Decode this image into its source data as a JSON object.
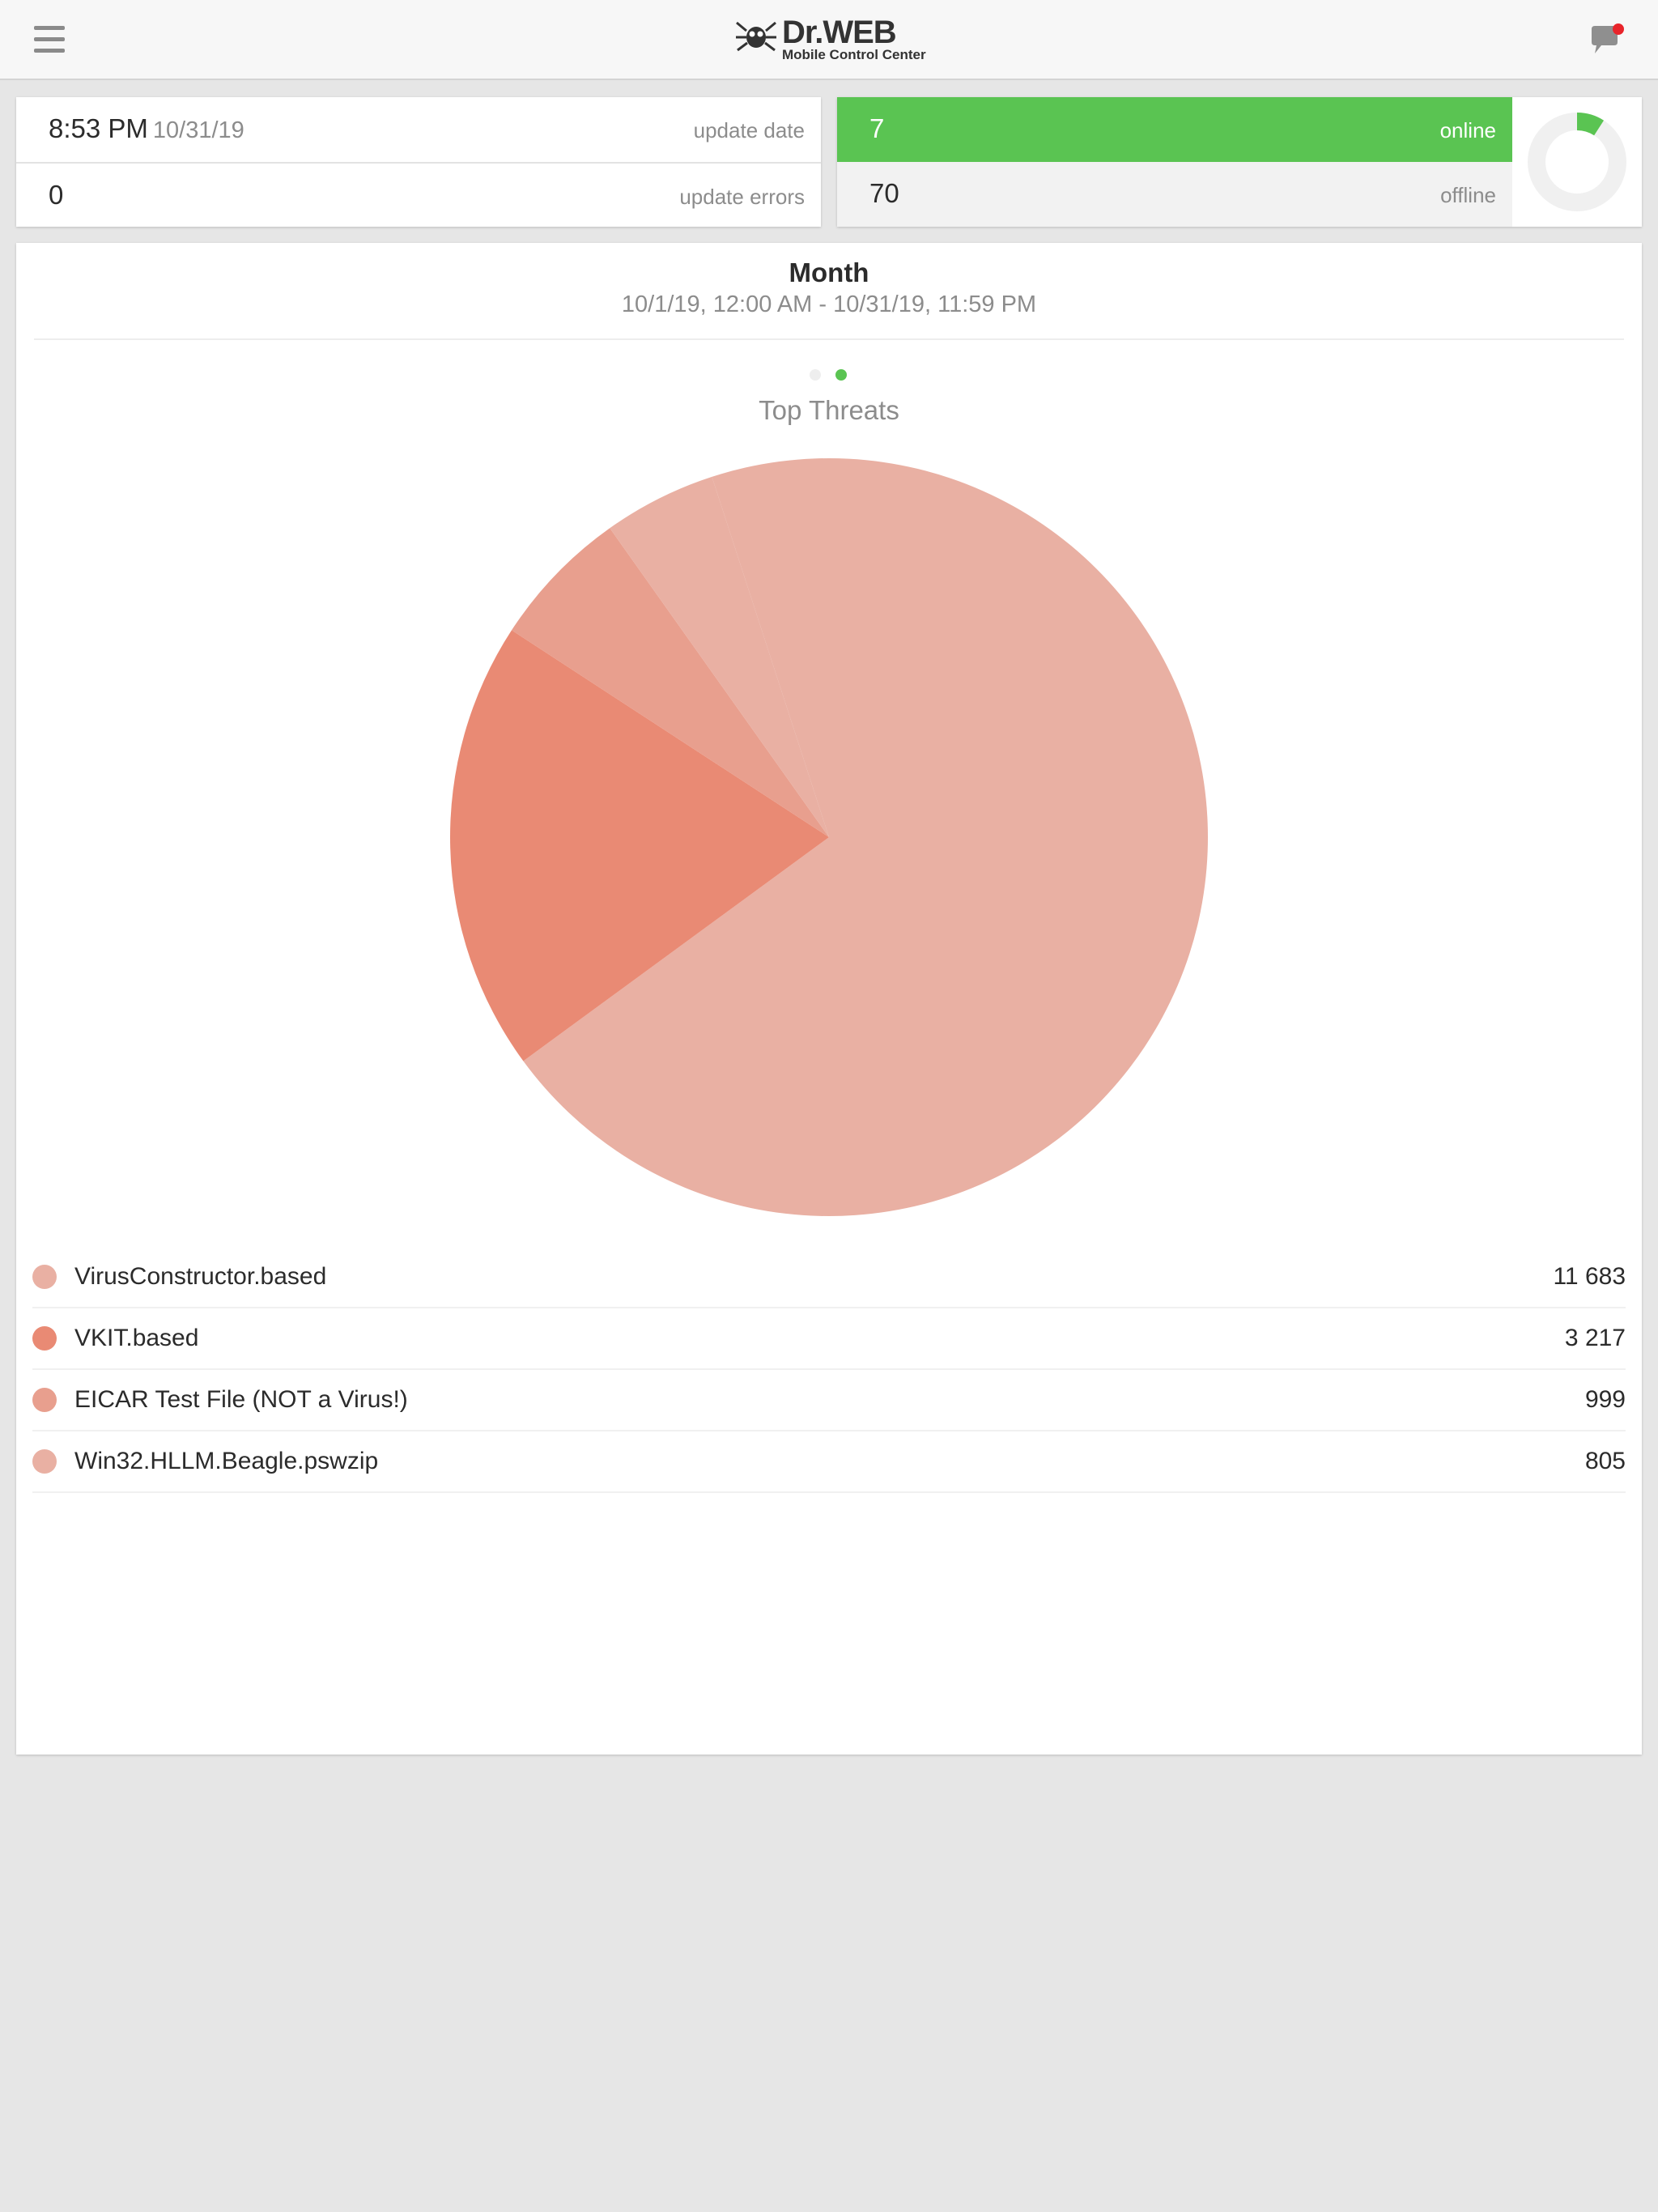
{
  "header": {
    "brand": "Dr.WEB",
    "subtitle": "Mobile Control Center",
    "notification_color": "#e8242a"
  },
  "status": {
    "update_time": "8:53 PM",
    "update_date": "10/31/19",
    "update_date_label": "update date",
    "update_errors": "0",
    "update_errors_label": "update errors",
    "online_count": "7",
    "online_label": "online",
    "offline_count": "70",
    "offline_label": "offline",
    "online_color": "#5ac452"
  },
  "period": {
    "title": "Month",
    "range": "10/1/19, 12:00 AM - 10/31/19, 11:59 PM",
    "active_page": 2,
    "page_count": 2
  },
  "chart_data": {
    "type": "pie",
    "title": "Top Threats",
    "categories": [
      "VirusConstructor.based",
      "VKIT.based",
      "EICAR Test File (NOT a Virus!)",
      "Win32.HLLM.Beagle.pswzip"
    ],
    "values": [
      11683,
      3217,
      999,
      805
    ],
    "display_values": [
      "11 683",
      "3 217",
      "999",
      "805"
    ],
    "colors": [
      "#e9b0a3",
      "#e98a74",
      "#e89f8e",
      "#e9b0a3"
    ],
    "legend": "bottom"
  }
}
